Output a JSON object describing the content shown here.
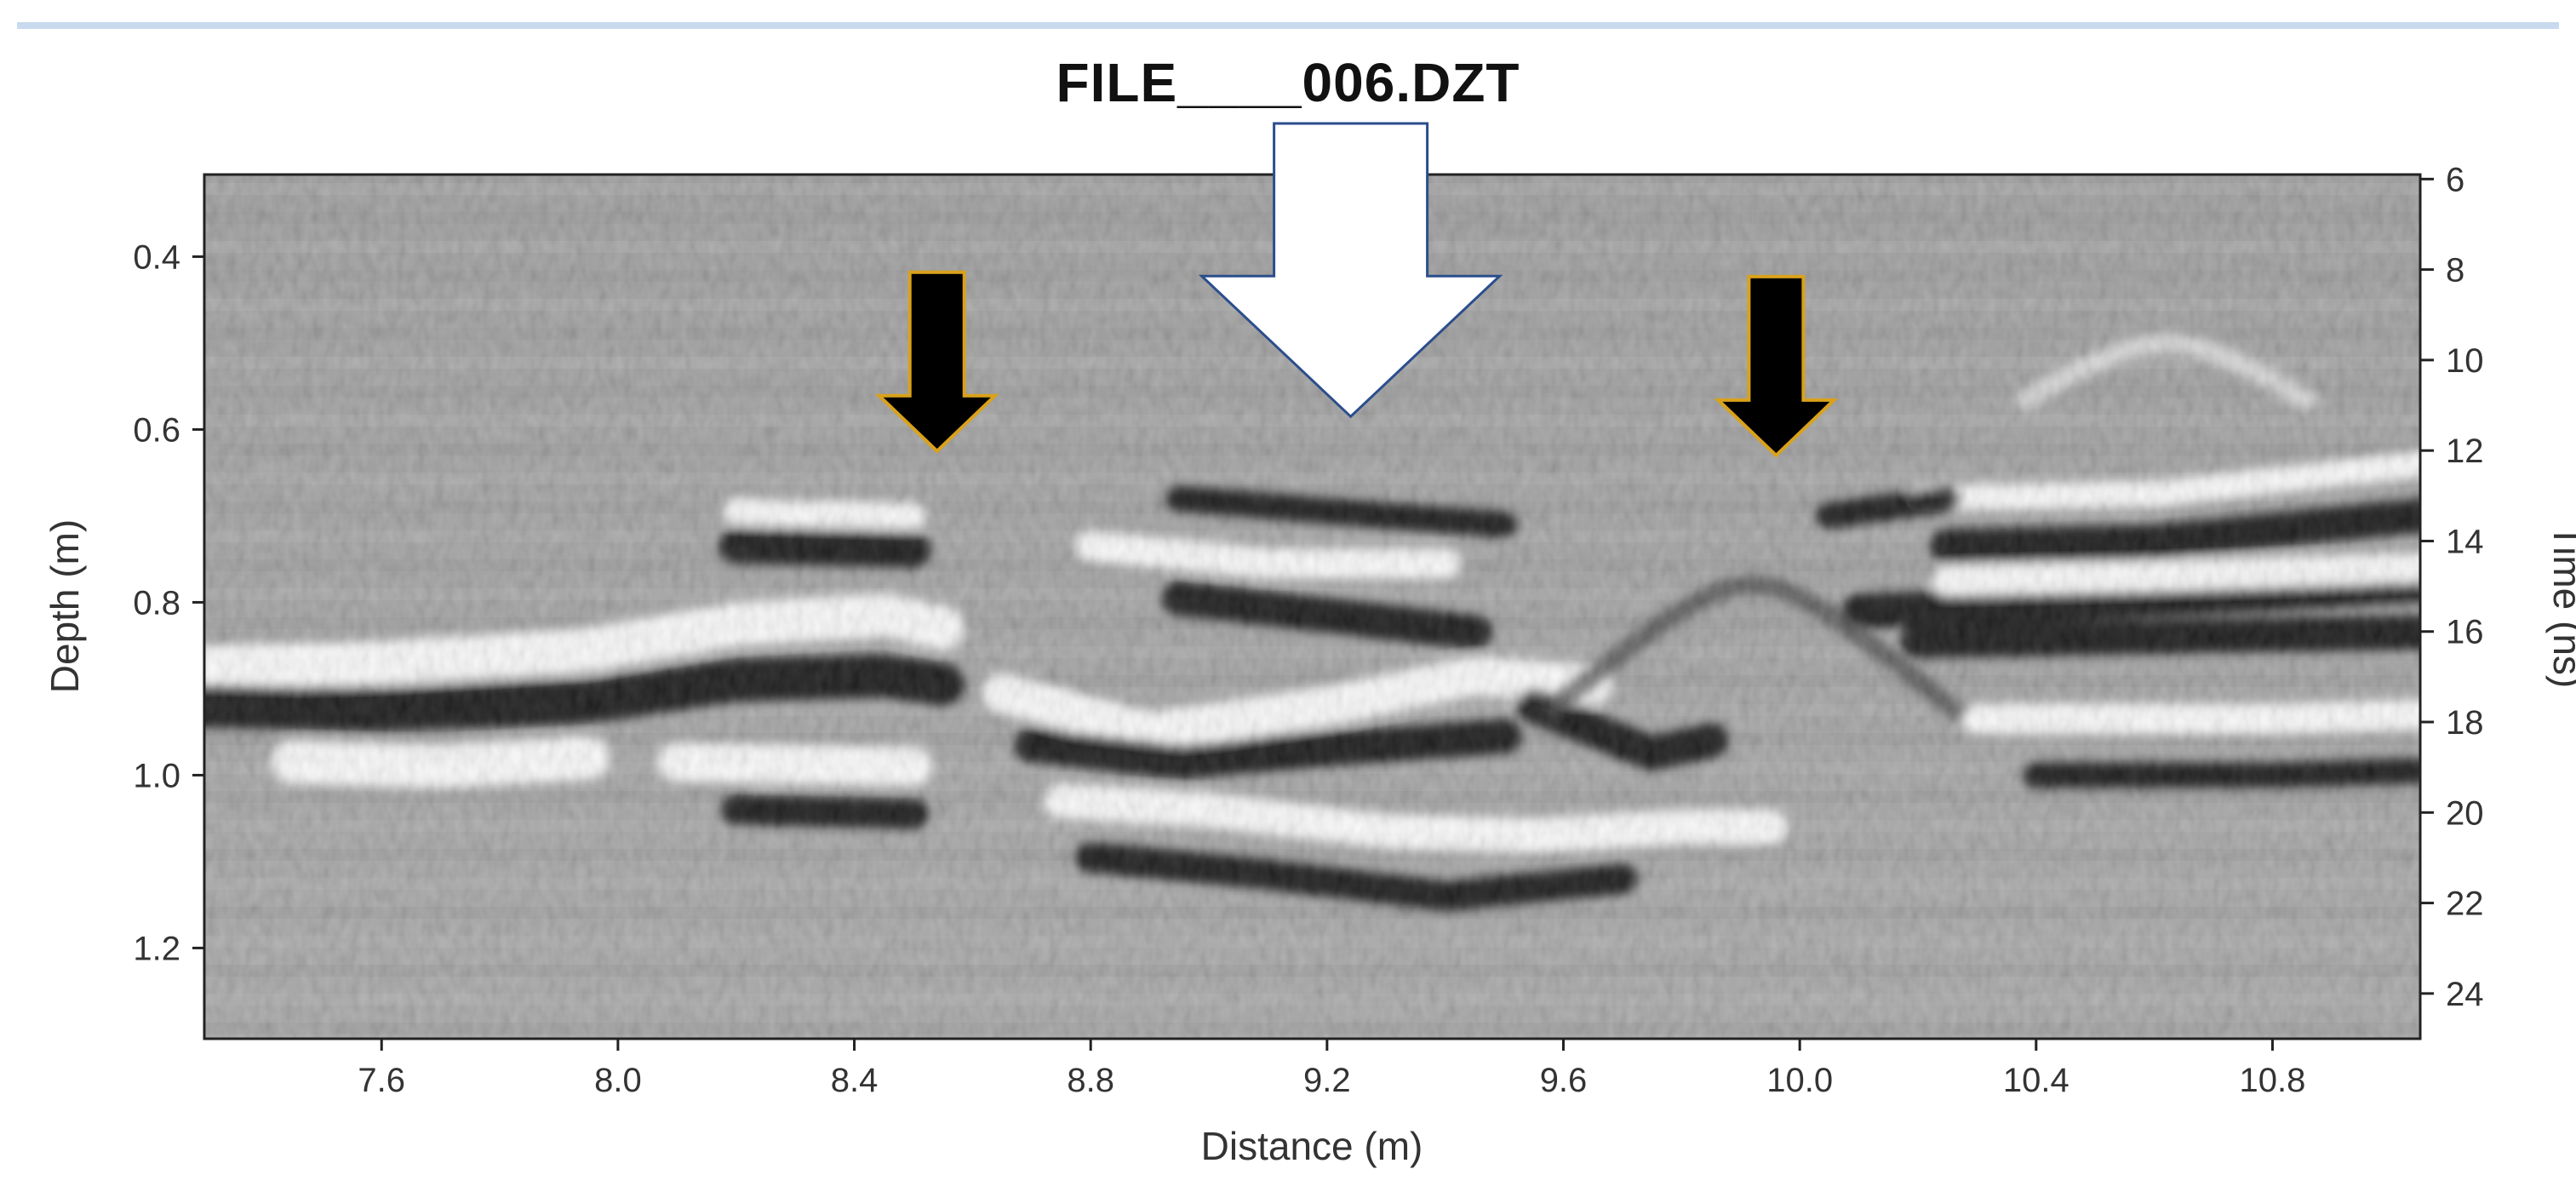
{
  "figure": {
    "title": "FILE____006.DZT"
  },
  "chart_data": {
    "type": "heatmap",
    "title": "FILE____006.DZT",
    "description_kind": "GPR radargram (grayscale reflection amplitude)",
    "xlabel": "Distance (m)",
    "ylabel": "Depth (m)",
    "y2label": "Time (ns)",
    "xlim": [
      7.3,
      11.05
    ],
    "ylim": [
      1.305,
      0.305
    ],
    "y2lim": [
      25.0,
      5.9
    ],
    "x_ticks": [
      7.6,
      8.0,
      8.4,
      8.8,
      9.2,
      9.6,
      10.0,
      10.4,
      10.8
    ],
    "x_tick_labels": [
      "7.6",
      "8.0",
      "8.4",
      "8.8",
      "9.2",
      "9.6",
      "10.0",
      "10.4",
      "10.8"
    ],
    "y_ticks": [
      0.4,
      0.6,
      0.8,
      1.0,
      1.2
    ],
    "y_tick_labels": [
      "0.4",
      "0.6",
      "0.8",
      "1.0",
      "1.2"
    ],
    "y2_ticks": [
      6,
      8,
      10,
      12,
      14,
      16,
      18,
      20,
      22,
      24
    ],
    "y2_tick_labels": [
      "6",
      "8",
      "10",
      "12",
      "14",
      "16",
      "18",
      "20",
      "22",
      "24"
    ],
    "grid": false,
    "colormap": "grayscale",
    "annotations": [
      {
        "kind": "arrow",
        "style": "large-white",
        "x": 9.24,
        "tip_depth": 0.585,
        "fill": "#ffffff",
        "stroke": "#2b4e8c"
      },
      {
        "kind": "arrow",
        "style": "small-black",
        "x": 8.54,
        "tip_depth": 0.625,
        "fill": "#000000",
        "stroke": "#d9a21b"
      },
      {
        "kind": "arrow",
        "style": "small-black",
        "x": 9.96,
        "tip_depth": 0.63,
        "fill": "#000000",
        "stroke": "#d9a21b"
      }
    ],
    "reflectors": [
      {
        "polarity": "bright",
        "points": [
          [
            7.3,
            0.875
          ],
          [
            7.6,
            0.87
          ],
          [
            7.95,
            0.855
          ],
          [
            8.2,
            0.825
          ],
          [
            8.45,
            0.815
          ],
          [
            8.55,
            0.83
          ]
        ],
        "width": 0.05
      },
      {
        "polarity": "dark",
        "points": [
          [
            7.3,
            0.92
          ],
          [
            7.6,
            0.925
          ],
          [
            7.95,
            0.915
          ],
          [
            8.2,
            0.89
          ],
          [
            8.45,
            0.885
          ],
          [
            8.55,
            0.895
          ]
        ],
        "width": 0.05
      },
      {
        "polarity": "bright",
        "points": [
          [
            7.45,
            0.985
          ],
          [
            7.7,
            0.99
          ],
          [
            7.95,
            0.98
          ]
        ],
        "width": 0.05
      },
      {
        "polarity": "bright",
        "points": [
          [
            8.1,
            0.985
          ],
          [
            8.5,
            0.99
          ]
        ],
        "width": 0.045
      },
      {
        "polarity": "dark",
        "points": [
          [
            8.2,
            1.04
          ],
          [
            8.5,
            1.045
          ]
        ],
        "width": 0.035
      },
      {
        "polarity": "dark",
        "points": [
          [
            8.2,
            0.735
          ],
          [
            8.5,
            0.74
          ]
        ],
        "width": 0.04
      },
      {
        "polarity": "bright",
        "points": [
          [
            8.2,
            0.695
          ],
          [
            8.5,
            0.7
          ]
        ],
        "width": 0.03
      },
      {
        "polarity": "bright",
        "points": [
          [
            8.65,
            0.905
          ],
          [
            8.9,
            0.95
          ],
          [
            9.2,
            0.92
          ],
          [
            9.45,
            0.885
          ],
          [
            9.65,
            0.895
          ]
        ],
        "width": 0.045
      },
      {
        "polarity": "dark",
        "points": [
          [
            8.7,
            0.965
          ],
          [
            8.95,
            0.985
          ],
          [
            9.2,
            0.97
          ],
          [
            9.5,
            0.955
          ]
        ],
        "width": 0.04
      },
      {
        "polarity": "dark",
        "points": [
          [
            8.95,
            0.795
          ],
          [
            9.2,
            0.815
          ],
          [
            9.45,
            0.835
          ]
        ],
        "width": 0.04
      },
      {
        "polarity": "bright",
        "points": [
          [
            8.8,
            0.735
          ],
          [
            9.1,
            0.755
          ],
          [
            9.4,
            0.755
          ]
        ],
        "width": 0.035
      },
      {
        "polarity": "dark",
        "points": [
          [
            8.95,
            0.68
          ],
          [
            9.3,
            0.7
          ],
          [
            9.5,
            0.71
          ]
        ],
        "width": 0.03
      },
      {
        "polarity": "bright",
        "points": [
          [
            8.75,
            1.03
          ],
          [
            9.0,
            1.04
          ],
          [
            9.3,
            1.065
          ],
          [
            9.55,
            1.07
          ],
          [
            9.8,
            1.06
          ],
          [
            9.95,
            1.06
          ]
        ],
        "width": 0.04
      },
      {
        "polarity": "dark",
        "points": [
          [
            8.8,
            1.095
          ],
          [
            9.1,
            1.115
          ],
          [
            9.4,
            1.14
          ],
          [
            9.7,
            1.12
          ]
        ],
        "width": 0.035
      },
      {
        "polarity": "dark",
        "points": [
          [
            9.55,
            0.92
          ],
          [
            9.75,
            0.975
          ],
          [
            9.85,
            0.96
          ]
        ],
        "width": 0.04
      },
      {
        "polarity": "dark",
        "points": [
          [
            10.1,
            0.81
          ],
          [
            10.5,
            0.8
          ],
          [
            10.8,
            0.79
          ],
          [
            11.05,
            0.78
          ]
        ],
        "width": 0.04
      },
      {
        "polarity": "dark",
        "points": [
          [
            10.2,
            0.845
          ],
          [
            10.6,
            0.84
          ],
          [
            11.05,
            0.835
          ]
        ],
        "width": 0.04
      },
      {
        "polarity": "bright",
        "points": [
          [
            10.25,
            0.775
          ],
          [
            10.6,
            0.77
          ],
          [
            11.05,
            0.76
          ]
        ],
        "width": 0.035
      },
      {
        "polarity": "dark",
        "points": [
          [
            10.25,
            0.735
          ],
          [
            10.6,
            0.73
          ],
          [
            11.05,
            0.7
          ]
        ],
        "width": 0.04
      },
      {
        "polarity": "bright",
        "points": [
          [
            10.2,
            0.68
          ],
          [
            10.6,
            0.675
          ],
          [
            11.05,
            0.64
          ]
        ],
        "width": 0.03
      },
      {
        "polarity": "dark",
        "points": [
          [
            10.4,
            1.0
          ],
          [
            10.8,
            1.0
          ],
          [
            11.05,
            0.995
          ]
        ],
        "width": 0.03
      },
      {
        "polarity": "bright",
        "points": [
          [
            10.3,
            0.935
          ],
          [
            10.8,
            0.935
          ],
          [
            11.05,
            0.93
          ]
        ],
        "width": 0.035
      },
      {
        "polarity": "dark",
        "points": [
          [
            10.05,
            0.7
          ],
          [
            10.25,
            0.68
          ]
        ],
        "width": 0.03
      }
    ],
    "hyperbolas": [
      {
        "apex_x": 10.62,
        "apex_depth": 0.5,
        "half_width": 0.25,
        "depth_gain": 0.45,
        "polarity": "bright"
      },
      {
        "apex_x": 9.92,
        "apex_depth": 0.78,
        "half_width": 0.35,
        "depth_gain": 0.6,
        "polarity": "dark"
      }
    ]
  }
}
